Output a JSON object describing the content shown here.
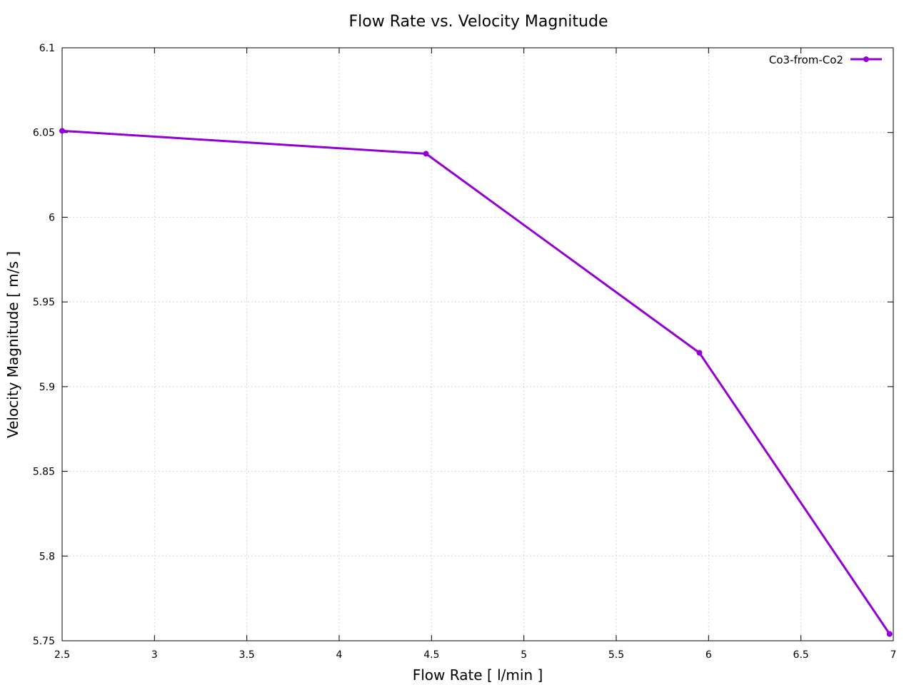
{
  "chart_data": {
    "type": "line",
    "title": "Flow Rate vs. Velocity Magnitude",
    "xlabel": "Flow Rate [ l/min ]",
    "ylabel": "Velocity Magnitude [ m/s ]",
    "xlim": [
      2.5,
      7
    ],
    "ylim": [
      5.75,
      6.1
    ],
    "xticks": [
      2.5,
      3,
      3.5,
      4,
      4.5,
      5,
      5.5,
      6,
      6.5,
      7
    ],
    "xtick_labels": [
      "2.5",
      "3",
      "3.5",
      "4",
      "4.5",
      "5",
      "5.5",
      "6",
      "6.5",
      "7"
    ],
    "yticks": [
      5.75,
      5.8,
      5.85,
      5.9,
      5.95,
      6,
      6.05,
      6.1
    ],
    "ytick_labels": [
      "5.75",
      "5.8",
      "5.85",
      "5.9",
      "5.95",
      "6",
      "6.05",
      "6.1"
    ],
    "grid": true,
    "legend_position": "top-right",
    "series": [
      {
        "name": "Co3-from-Co2",
        "color": "#9400d3",
        "x": [
          2.5,
          4.47,
          5.95,
          6.98
        ],
        "y": [
          6.051,
          6.0375,
          5.92,
          5.754
        ]
      }
    ]
  }
}
